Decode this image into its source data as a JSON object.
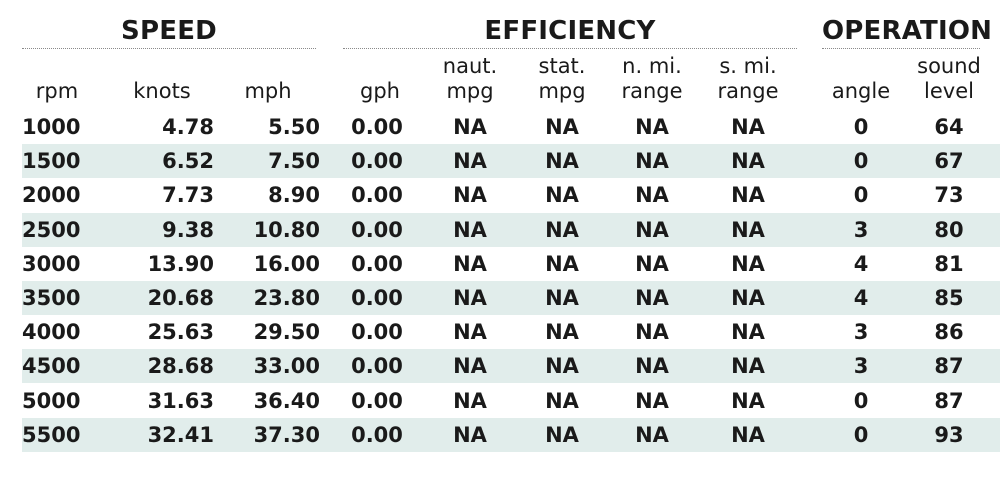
{
  "groups": {
    "speed": "SPEED",
    "efficiency": "EFFICIENCY",
    "operation": "OPERATION"
  },
  "headers": {
    "rpm": [
      "",
      "rpm"
    ],
    "knots": [
      "",
      "knots"
    ],
    "mph": [
      "",
      "mph"
    ],
    "gph": [
      "",
      "gph"
    ],
    "naut_mpg": [
      "naut.",
      "mpg"
    ],
    "stat_mpg": [
      "stat.",
      "mpg"
    ],
    "n_mi_range": [
      "n. mi.",
      "range"
    ],
    "s_mi_range": [
      "s. mi.",
      "range"
    ],
    "angle": [
      "",
      "angle"
    ],
    "sound_level": [
      "sound",
      "level"
    ]
  },
  "rows": [
    [
      "1000",
      "4.78",
      "5.50",
      "0.00",
      "NA",
      "NA",
      "NA",
      "NA",
      "0",
      "64"
    ],
    [
      "1500",
      "6.52",
      "7.50",
      "0.00",
      "NA",
      "NA",
      "NA",
      "NA",
      "0",
      "67"
    ],
    [
      "2000",
      "7.73",
      "8.90",
      "0.00",
      "NA",
      "NA",
      "NA",
      "NA",
      "0",
      "73"
    ],
    [
      "2500",
      "9.38",
      "10.80",
      "0.00",
      "NA",
      "NA",
      "NA",
      "NA",
      "3",
      "80"
    ],
    [
      "3000",
      "13.90",
      "16.00",
      "0.00",
      "NA",
      "NA",
      "NA",
      "NA",
      "4",
      "81"
    ],
    [
      "3500",
      "20.68",
      "23.80",
      "0.00",
      "NA",
      "NA",
      "NA",
      "NA",
      "4",
      "85"
    ],
    [
      "4000",
      "25.63",
      "29.50",
      "0.00",
      "NA",
      "NA",
      "NA",
      "NA",
      "3",
      "86"
    ],
    [
      "4500",
      "28.68",
      "33.00",
      "0.00",
      "NA",
      "NA",
      "NA",
      "NA",
      "3",
      "87"
    ],
    [
      "5000",
      "31.63",
      "36.40",
      "0.00",
      "NA",
      "NA",
      "NA",
      "NA",
      "0",
      "87"
    ],
    [
      "5500",
      "32.41",
      "37.30",
      "0.00",
      "NA",
      "NA",
      "NA",
      "NA",
      "0",
      "93"
    ]
  ],
  "colors": {
    "row_shade": "#e1edeb",
    "text": "#1a1a1a"
  }
}
